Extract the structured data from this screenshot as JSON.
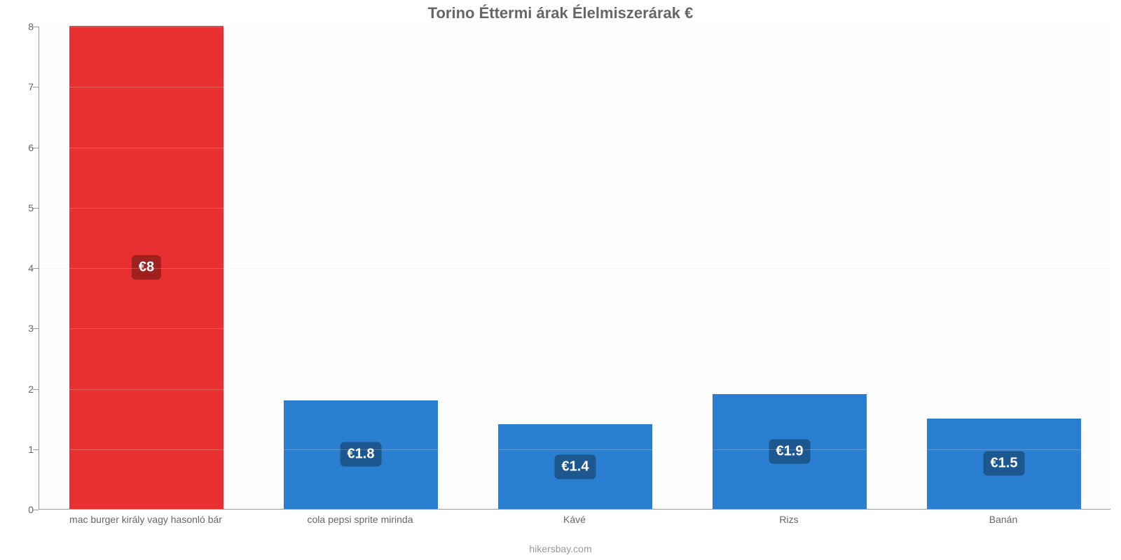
{
  "chart": {
    "type": "bar",
    "title": "Torino Éttermi árak Élelmiszerárak €",
    "title_fontsize": 22,
    "title_color": "#666666",
    "footer": "hikersbay.com",
    "footer_fontsize": 14,
    "footer_color": "#999999",
    "background_color": "#ffffff",
    "plot_background_color": "#fdfdfe",
    "axis_color": "#999999",
    "grid_color": "#e6e6e6",
    "ylim_min": 0,
    "ylim_max": 8,
    "ytick_step": 1,
    "yticks": [
      {
        "v": 0,
        "label": "0"
      },
      {
        "v": 1,
        "label": "1"
      },
      {
        "v": 2,
        "label": "2"
      },
      {
        "v": 3,
        "label": "3"
      },
      {
        "v": 4,
        "label": "4"
      },
      {
        "v": 5,
        "label": "5"
      },
      {
        "v": 6,
        "label": "6"
      },
      {
        "v": 7,
        "label": "7"
      },
      {
        "v": 8,
        "label": "8"
      }
    ],
    "tick_fontsize": 14,
    "xtick_fontsize": 14,
    "value_label_fontsize": 20,
    "value_label_radius": 6,
    "value_label_text_color": "#ffffff",
    "bar_width_ratio": 0.72,
    "slot_count": 5,
    "categories": [
      {
        "label": "mac burger király vagy hasonló bár",
        "value": 8,
        "value_label": "€8",
        "bar_color": "#e7302f",
        "badge_color": "#9f211f"
      },
      {
        "label": "cola pepsi sprite mirinda",
        "value": 1.8,
        "value_label": "€1.8",
        "bar_color": "#2a7fd1",
        "badge_color": "#1d578f"
      },
      {
        "label": "Kávé",
        "value": 1.4,
        "value_label": "€1.4",
        "bar_color": "#2a7fd1",
        "badge_color": "#1d578f"
      },
      {
        "label": "Rizs",
        "value": 1.9,
        "value_label": "€1.9",
        "bar_color": "#2a7fd1",
        "badge_color": "#1d578f"
      },
      {
        "label": "Banán",
        "value": 1.5,
        "value_label": "€1.5",
        "bar_color": "#2a7fd1",
        "badge_color": "#1d578f"
      }
    ]
  }
}
